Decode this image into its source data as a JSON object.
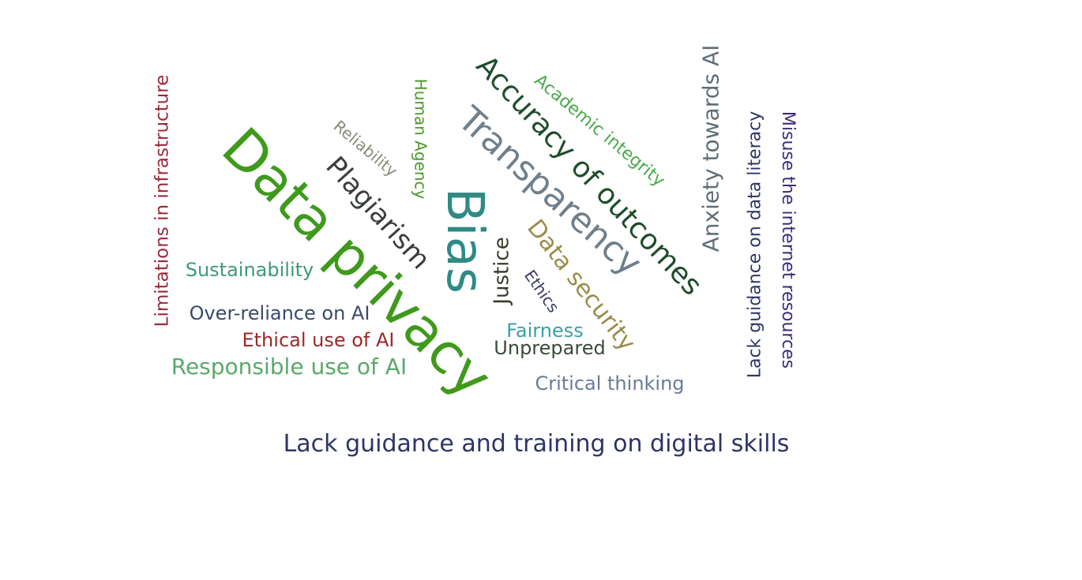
{
  "words": [
    {
      "id": "data-privacy",
      "text": "Data privacy",
      "color": "#3f9a1c",
      "weight": 10
    },
    {
      "id": "bias",
      "text": "Bias",
      "color": "#2f8a84",
      "weight": 9
    },
    {
      "id": "transparency",
      "text": "Transparency",
      "color": "#6f7f8c",
      "weight": 8
    },
    {
      "id": "accuracy-of-outcomes",
      "text": "Accuracy of outcomes",
      "color": "#1e4d2b",
      "weight": 8
    },
    {
      "id": "plagiarism",
      "text": "Plagiarism",
      "color": "#3a3f3a",
      "weight": 6
    },
    {
      "id": "data-security",
      "text": "Data security",
      "color": "#9a8c4a",
      "weight": 6
    },
    {
      "id": "anxiety-towards-ai",
      "text": "Anxiety towards AI",
      "color": "#5f6f78",
      "weight": 6
    },
    {
      "id": "lack-guidance-training",
      "text": "Lack guidance and training on digital skills",
      "color": "#2e3466",
      "weight": 5
    },
    {
      "id": "responsible-use-of-ai",
      "text": "Responsible use of AI",
      "color": "#5aa86a",
      "weight": 5
    },
    {
      "id": "justice",
      "text": "Justice",
      "color": "#3a3a2a",
      "weight": 5
    },
    {
      "id": "limitations-infrastructure",
      "text": "Limitations in infrastructure",
      "color": "#9a2a3a",
      "weight": 4
    },
    {
      "id": "lack-guidance-data-literacy",
      "text": "Lack guidance on data literacy",
      "color": "#2e3466",
      "weight": 4
    },
    {
      "id": "misuse-internet-resources",
      "text": "Misuse the internet resources",
      "color": "#3f2a7a",
      "weight": 4
    },
    {
      "id": "sustainability",
      "text": "Sustainability",
      "color": "#3a9a7a",
      "weight": 4
    },
    {
      "id": "over-reliance-on-ai",
      "text": "Over-reliance on AI",
      "color": "#3a4a6a",
      "weight": 4
    },
    {
      "id": "ethical-use-of-ai",
      "text": "Ethical use of AI",
      "color": "#9a2a2a",
      "weight": 4
    },
    {
      "id": "critical-thinking",
      "text": "Critical thinking",
      "color": "#6a7a9a",
      "weight": 4
    },
    {
      "id": "unprepared",
      "text": "Unprepared",
      "color": "#3a4a3a",
      "weight": 4
    },
    {
      "id": "fairness",
      "text": "Fairness",
      "color": "#3aa0a8",
      "weight": 4
    },
    {
      "id": "academic-integrity",
      "text": "Academic integrity",
      "color": "#4aaa4a",
      "weight": 3
    },
    {
      "id": "human-agency",
      "text": "Human Agency",
      "color": "#4a9a2a",
      "weight": 3
    },
    {
      "id": "reliability",
      "text": "Reliability",
      "color": "#8a8a7a",
      "weight": 3
    },
    {
      "id": "ethics",
      "text": "Ethics",
      "color": "#3a3a6a",
      "weight": 3
    }
  ]
}
